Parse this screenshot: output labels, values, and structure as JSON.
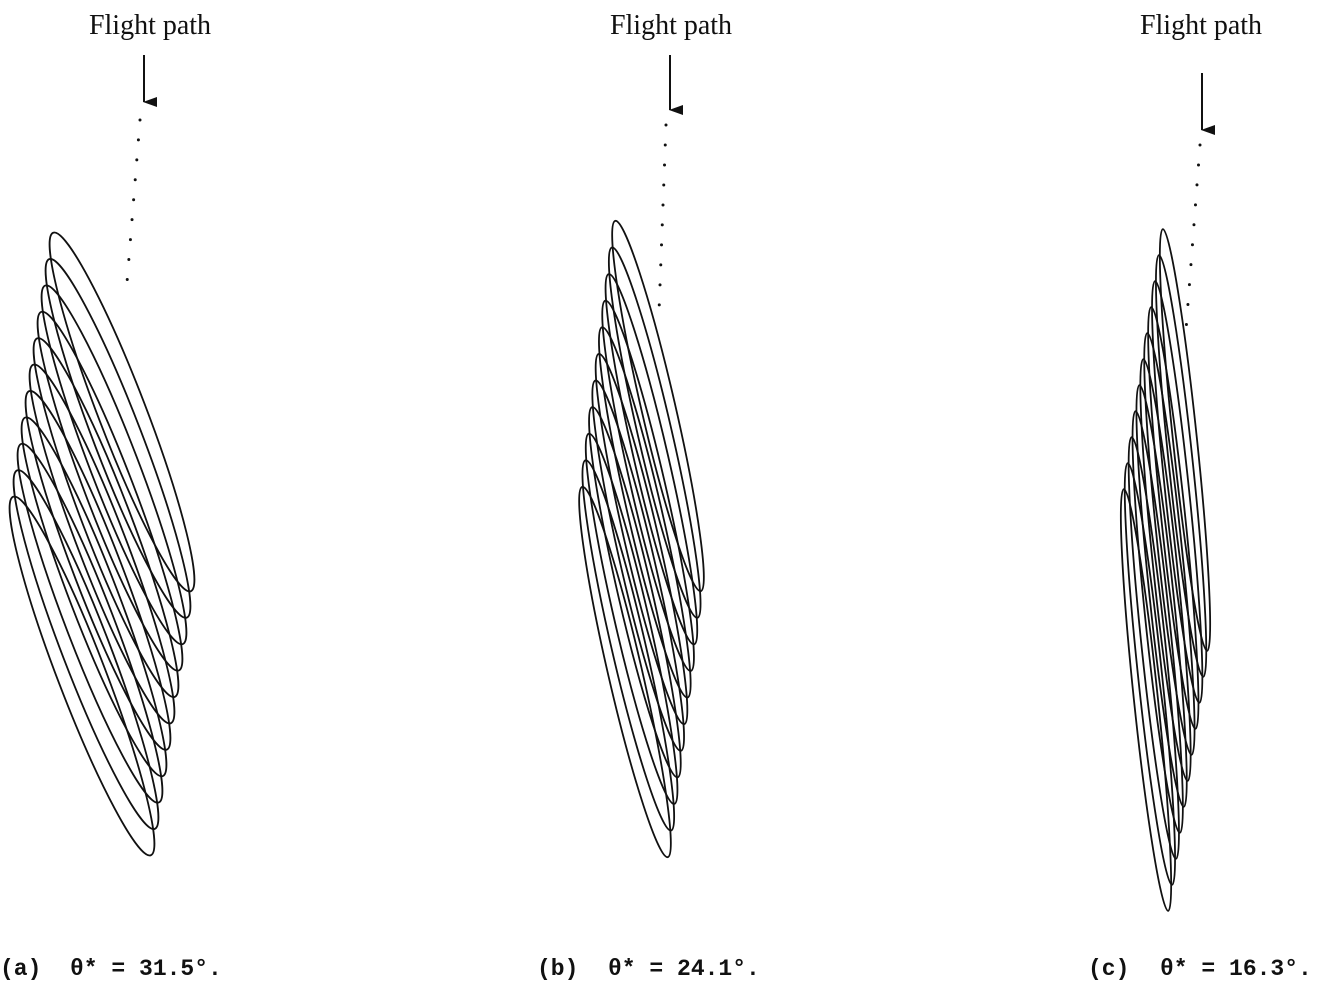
{
  "panels": [
    {
      "label": "Flight path",
      "tag": "(a)",
      "caption": "θ* = 31.5°."
    },
    {
      "label": "Flight path",
      "tag": "(b)",
      "caption": "θ* = 24.1°."
    },
    {
      "label": "Flight path",
      "tag": "(c)",
      "caption": "θ* = 16.3°."
    }
  ]
}
